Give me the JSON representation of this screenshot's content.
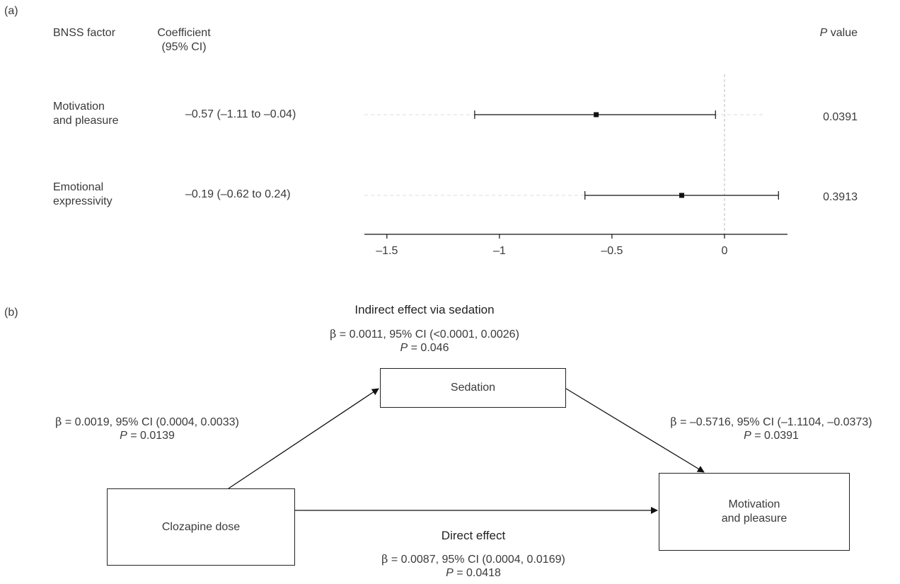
{
  "panel_a": {
    "label": "(a)",
    "header_factor": "BNSS factor",
    "header_coef_line1": "Coefficient",
    "header_coef_line2": "(95% CI)",
    "header_p_italic": "P",
    "header_p_rest": " value",
    "rows": [
      {
        "factor_line1": "Motivation",
        "factor_line2": "and pleasure",
        "coef_text": "–0.57 (–1.11 to –0.04)",
        "p_value": "0.0391"
      },
      {
        "factor_line1": "Emotional",
        "factor_line2": "expressivity",
        "coef_text": "–0.19 (–0.62 to 0.24)",
        "p_value": "0.3913"
      }
    ]
  },
  "chart_data": {
    "type": "forest",
    "categories": [
      "Motivation and pleasure",
      "Emotional expressivity"
    ],
    "series": [
      {
        "estimate": [
          -0.57,
          -0.19
        ],
        "lower": [
          -1.11,
          -0.62
        ],
        "upper": [
          -0.04,
          0.24
        ]
      }
    ],
    "xlim": [
      -1.6,
      0.28
    ],
    "xticks": [
      -1.5,
      -1,
      -0.5,
      0
    ],
    "xtick_labels": [
      "–1.5",
      "–1",
      "–0.5",
      "0"
    ],
    "reference_line": 0
  },
  "panel_b": {
    "label": "(b)",
    "indirect_title": "Indirect effect via sedation",
    "indirect_stat_sym": "β",
    "indirect_stat_rest": " = 0.0011, 95% CI (<0.0001, 0.0026)",
    "indirect_p_italic": "P",
    "indirect_p_rest": " = 0.046",
    "left_stat_sym": "β",
    "left_stat_rest": " = 0.0019, 95% CI (0.0004, 0.0033)",
    "left_p_italic": "P",
    "left_p_rest": " = 0.0139",
    "right_stat_sym": "β",
    "right_stat_rest": " = –0.5716, 95% CI (–1.1104, –0.0373)",
    "right_p_italic": "P",
    "right_p_rest": " = 0.0391",
    "direct_title": "Direct effect",
    "direct_stat_sym": "β",
    "direct_stat_rest": " = 0.0087, 95% CI (0.0004, 0.0169)",
    "direct_p_italic": "P",
    "direct_p_rest": " = 0.0418",
    "box_sedation": "Sedation",
    "box_clozapine": "Clozapine dose",
    "box_outcome_line1": "Motivation",
    "box_outcome_line2": "and pleasure"
  }
}
